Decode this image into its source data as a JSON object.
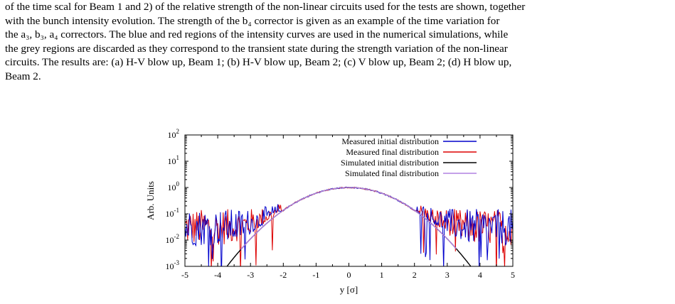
{
  "caption": {
    "lines": [
      "of the time scal for Beam 1 and 2) of the relative strength of the non-linear circuits used for the tests are shown, together",
      "with the bunch intensity evolution. The strength of the b₄ corrector is given as an example of the time variation for",
      "the a₃, b₃, a₄ correctors. The blue and red regions of the intensity curves are used in the numerical simulations, while",
      "the grey regions are discarded as they correspond to the transient state during the strength variation of the non-linear",
      "circuits. The results are: (a) H-V blow up, Beam 1; (b) H-V blow up, Beam 2; (c) V blow up, Beam 2; (d) H blow up,",
      "Beam 2."
    ]
  },
  "chart_data": {
    "type": "line",
    "title": "",
    "xlabel": "y  [σ]",
    "ylabel": "Arb. Units",
    "xlim": [
      -5,
      5
    ],
    "ylim": [
      0.001,
      100
    ],
    "yscale": "log",
    "x_ticks": [
      "-5",
      "-4",
      "-3",
      "-2",
      "-1",
      "0",
      "1",
      "2",
      "3",
      "4",
      "5"
    ],
    "y_ticks": [
      {
        "base": "10",
        "exp": "2"
      },
      {
        "base": "10",
        "exp": "1"
      },
      {
        "base": "10",
        "exp": "0"
      },
      {
        "base": "10",
        "exp": "-1"
      },
      {
        "base": "10",
        "exp": "-2"
      },
      {
        "base": "10",
        "exp": "-3"
      }
    ],
    "legend_position": "top-right",
    "series": [
      {
        "name": "Measured initial distribution",
        "color": "#0000cc",
        "kind": "noisy-gaussian",
        "sigma": 1.0,
        "peak": 1.0,
        "noise_floor": 0.03
      },
      {
        "name": "Measured final distribution",
        "color": "#dd0000",
        "kind": "noisy-gaussian",
        "sigma": 1.0,
        "peak": 1.0,
        "noise_floor": 0.03
      },
      {
        "name": "Simulated initial distribution",
        "color": "#000000",
        "kind": "gaussian",
        "sigma": 1.0,
        "peak": 1.0
      },
      {
        "name": "Simulated final distribution",
        "color": "#b080e0",
        "kind": "gaussian-truncated",
        "sigma": 1.0,
        "peak": 1.0,
        "cut": 3.3
      }
    ]
  }
}
